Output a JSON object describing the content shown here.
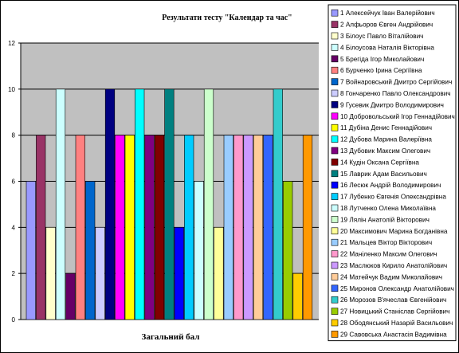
{
  "chart_data": {
    "type": "bar",
    "title": "Результати тесту \"Календар та час\"",
    "xlabel": "Загальний бал",
    "ylabel": "",
    "ylim": [
      0,
      12
    ],
    "yticks": [
      "0",
      "2",
      "4",
      "6",
      "8",
      "10",
      "12"
    ],
    "grid": true,
    "legend_position": "right",
    "series": [
      {
        "name": "1 Алексейчук Іван Валерійович",
        "value": 6,
        "color": "#9999ff"
      },
      {
        "name": "2 Алфьоров Євген Андрійович",
        "value": 8,
        "color": "#993366"
      },
      {
        "name": "3 Білоус Павло Віталійович",
        "value": 4,
        "color": "#ffffcc"
      },
      {
        "name": "4 Білоусова Наталія Вікторівна",
        "value": 10,
        "color": "#ccffff"
      },
      {
        "name": "5 Брегіда Ігор Миколайович",
        "value": 2,
        "color": "#660066"
      },
      {
        "name": "6 Бурченко Ірина Сергіївна",
        "value": 8,
        "color": "#ff8080"
      },
      {
        "name": "7 Войнаровський Дмитро Сергійович",
        "value": 6,
        "color": "#0066cc"
      },
      {
        "name": "8 Гончаренко Павло Олександрович",
        "value": 4,
        "color": "#ccccff"
      },
      {
        "name": "9 Гусевик Дмитро Володимирович",
        "value": 10,
        "color": "#000080"
      },
      {
        "name": "10 Добровольський Ігор Геннадійович",
        "value": 8,
        "color": "#ff00ff"
      },
      {
        "name": "11 Дубіна Денис Геннадійович",
        "value": 8,
        "color": "#ffff00"
      },
      {
        "name": "12 Дубова Марина Валеріївна",
        "value": 10,
        "color": "#00ffff"
      },
      {
        "name": "13 Дубовик Максим Олегович",
        "value": 8,
        "color": "#800080"
      },
      {
        "name": "14 Кудін Оксана Сергіївна",
        "value": 8,
        "color": "#800000"
      },
      {
        "name": "15 Лаврик Адам Васильович",
        "value": 10,
        "color": "#008080"
      },
      {
        "name": "16 Лесюк Андрій Володимирович",
        "value": 4,
        "color": "#0000ff"
      },
      {
        "name": "17 Лубенко Євгенія Олександрівна",
        "value": 8,
        "color": "#00ccff"
      },
      {
        "name": "18 Лутченко Олена Миколаївна",
        "value": 6,
        "color": "#ccffff"
      },
      {
        "name": "19 Лялін Анатолій Вікторович",
        "value": 10,
        "color": "#ccffcc"
      },
      {
        "name": "20 Максимович Марина Богданівна",
        "value": 4,
        "color": "#ffff99"
      },
      {
        "name": "21 Мальцев Віктор Вікторович",
        "value": 8,
        "color": "#99ccff"
      },
      {
        "name": "22 Маніленко Максим Олегович",
        "value": 8,
        "color": "#ff99cc"
      },
      {
        "name": "23 Маслюков Кирило Анатолійович",
        "value": 8,
        "color": "#cc99ff"
      },
      {
        "name": "24 Матейчук Вадим Миколайович",
        "value": 8,
        "color": "#ffcc99"
      },
      {
        "name": "25 Миронов Олександр Анатолійович",
        "value": 8,
        "color": "#3366ff"
      },
      {
        "name": "26 Морозов В'ячеслав Євгенійович",
        "value": 10,
        "color": "#33cccc"
      },
      {
        "name": "27 Новицький Станіслав Сергійович",
        "value": 6,
        "color": "#99cc00"
      },
      {
        "name": "28 Ободянський Назарій Васильович",
        "value": 2,
        "color": "#ffcc00"
      },
      {
        "name": "29 Савовська Анастасія Вадимівна",
        "value": 8,
        "color": "#ff9900"
      }
    ]
  }
}
